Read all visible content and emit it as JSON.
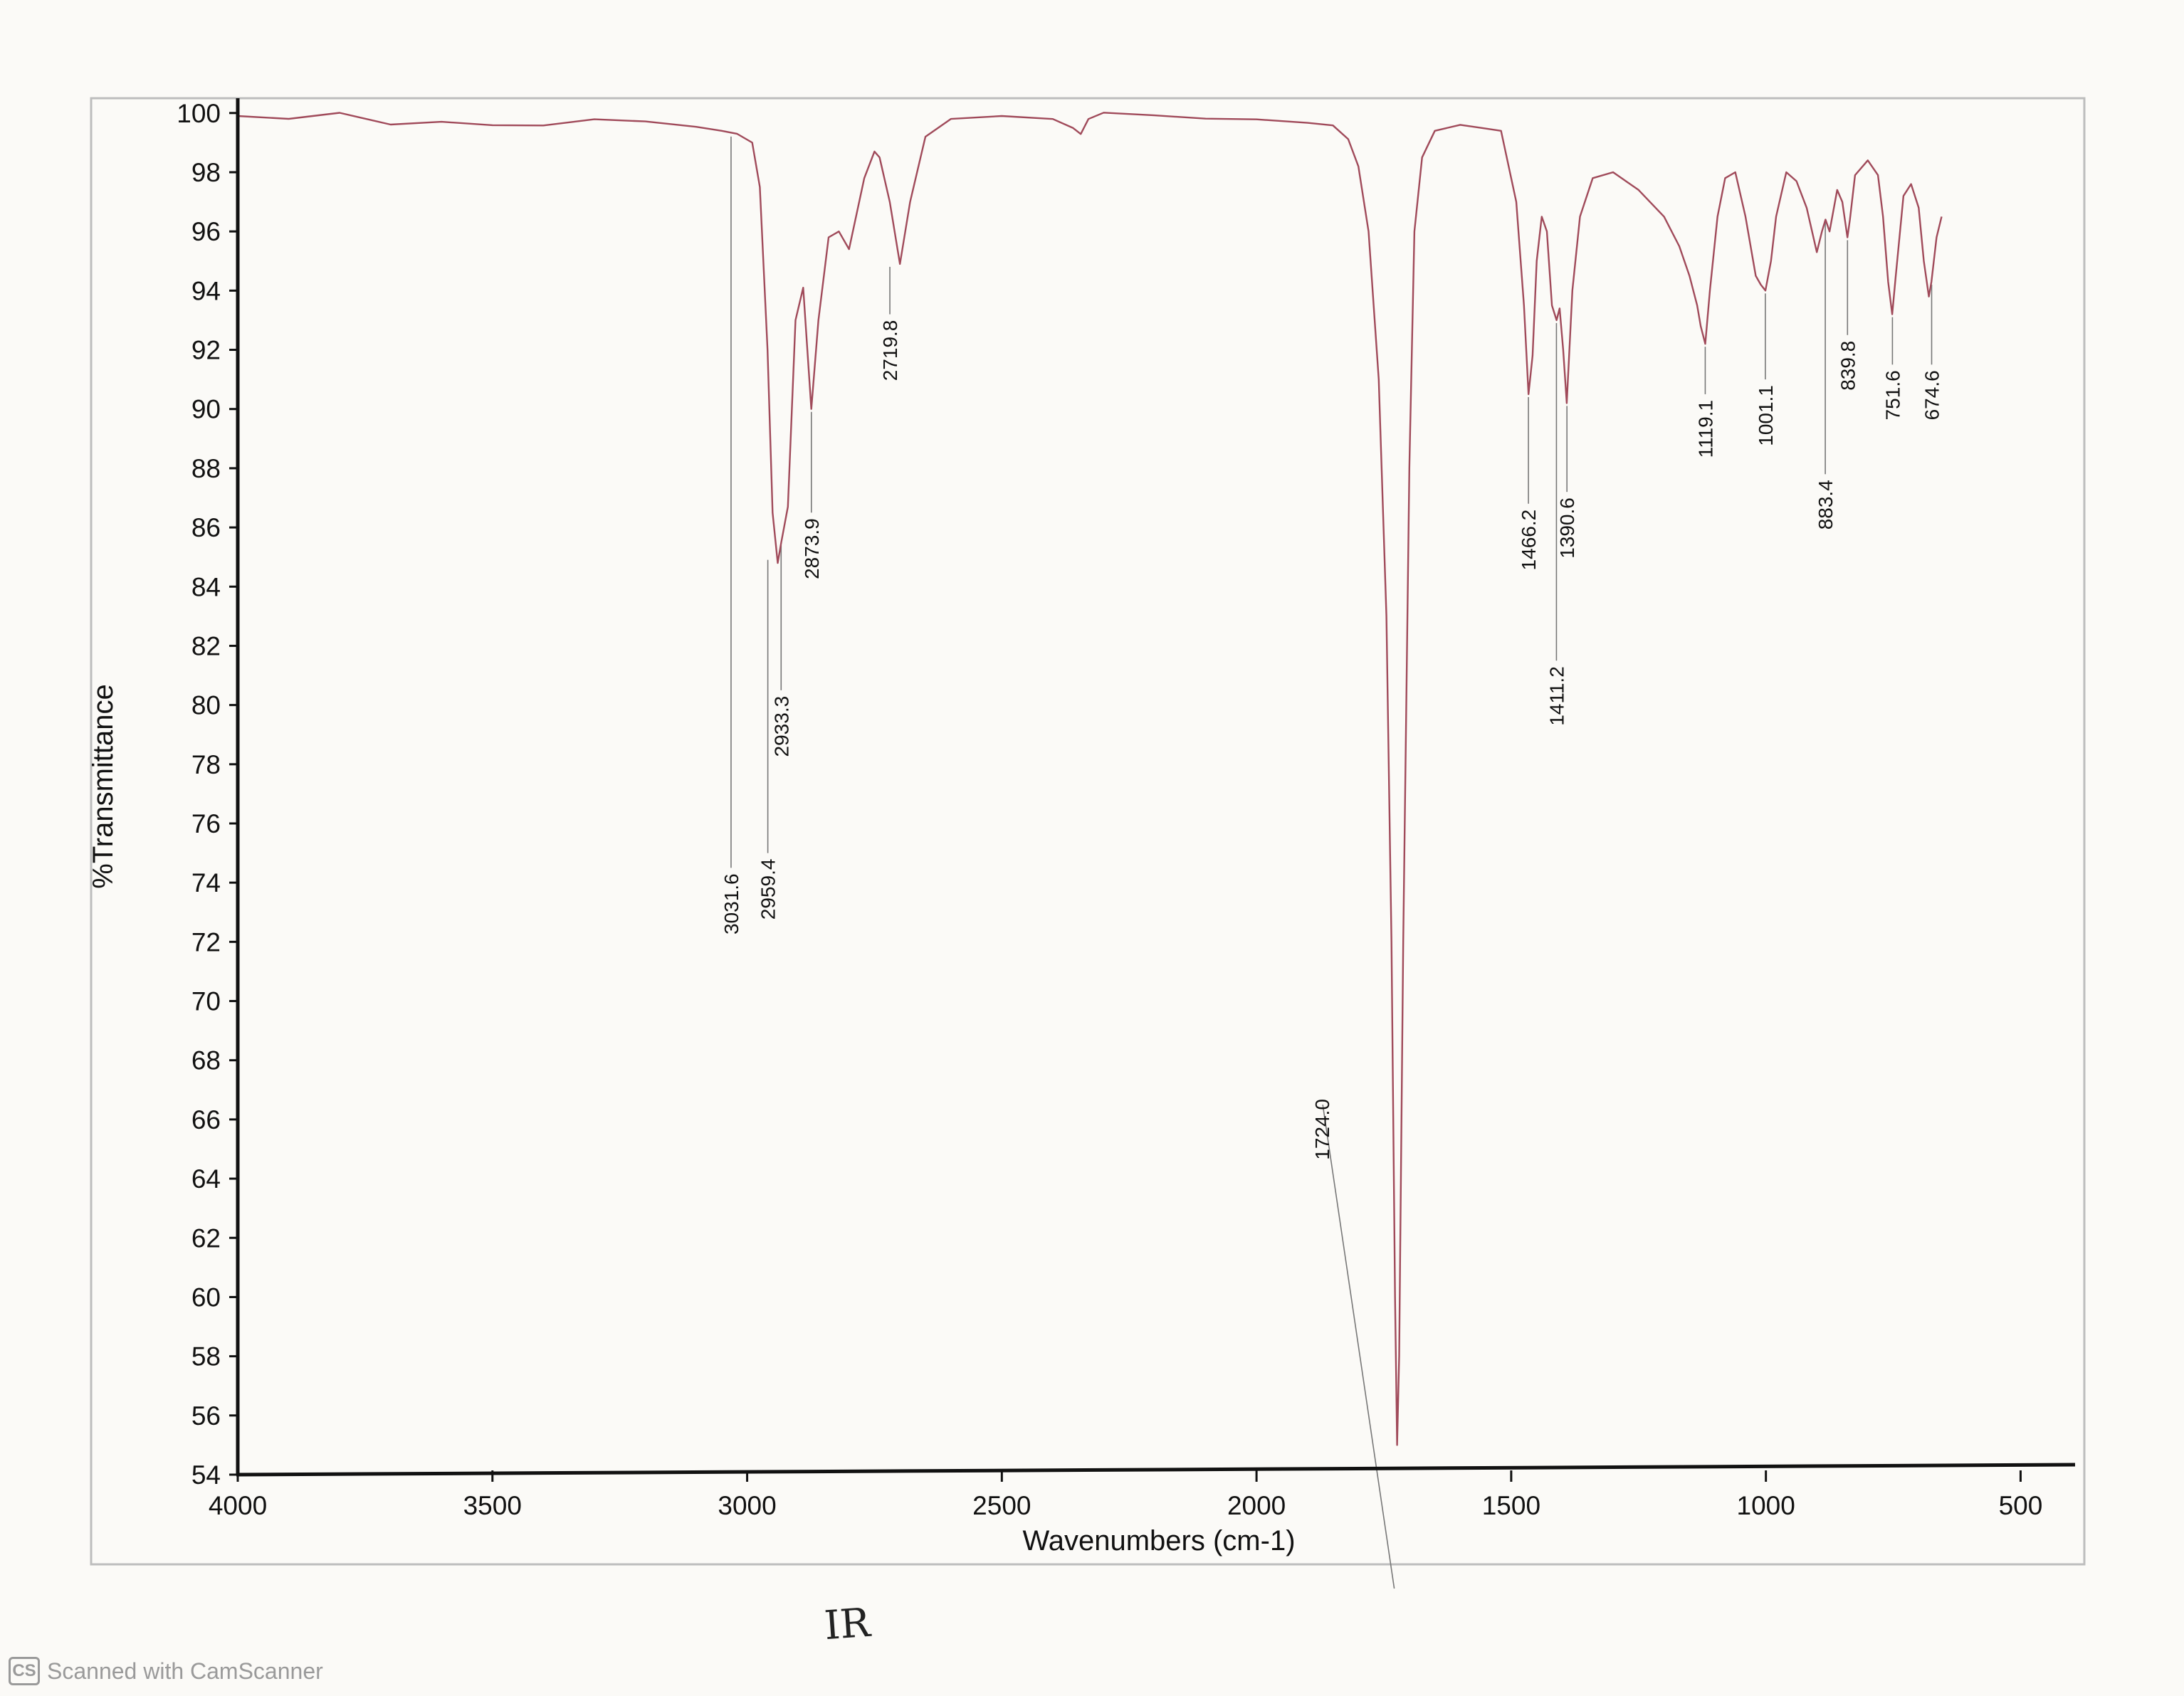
{
  "chart_data": {
    "type": "line",
    "xlabel": "Wavenumbers (cm-1)",
    "ylabel": "%Transmittance",
    "xlim": [
      4000,
      400
    ],
    "ylim": [
      54,
      100.5
    ],
    "x_ticks": [
      4000,
      3500,
      3000,
      2500,
      2000,
      1500,
      1000,
      500
    ],
    "y_ticks": [
      100,
      98,
      96,
      94,
      92,
      90,
      88,
      86,
      84,
      82,
      80,
      78,
      76,
      74,
      72,
      70,
      68,
      66,
      64,
      62,
      60,
      58,
      56,
      54
    ],
    "line_color": "#a04a5a",
    "grid": false,
    "series": [
      {
        "x": [
          4000,
          3900,
          3800,
          3700,
          3600,
          3500,
          3400,
          3300,
          3200,
          3100,
          3050,
          3020,
          2990,
          2975,
          2960,
          2950,
          2940,
          2933,
          2920,
          2905,
          2890,
          2874,
          2860,
          2840,
          2820,
          2800,
          2770,
          2750,
          2740,
          2720,
          2700,
          2680,
          2650,
          2600,
          2500,
          2400,
          2360,
          2345,
          2330,
          2300,
          2200,
          2100,
          2000,
          1900,
          1850,
          1820,
          1800,
          1780,
          1760,
          1745,
          1735,
          1728,
          1724,
          1720,
          1712,
          1700,
          1690,
          1675,
          1650,
          1600,
          1560,
          1520,
          1490,
          1475,
          1466,
          1458,
          1450,
          1440,
          1430,
          1420,
          1411,
          1405,
          1398,
          1391,
          1380,
          1365,
          1340,
          1300,
          1250,
          1200,
          1170,
          1150,
          1135,
          1128,
          1119,
          1110,
          1095,
          1080,
          1060,
          1040,
          1020,
          1010,
          1001,
          990,
          980,
          960,
          940,
          920,
          900,
          890,
          883,
          875,
          860,
          850,
          840,
          835,
          825,
          800,
          780,
          770,
          760,
          752,
          745,
          730,
          715,
          700,
          690,
          680,
          675,
          665,
          655
        ],
        "y": [
          99.9,
          99.7,
          99.9,
          99.6,
          99.8,
          99.7,
          99.6,
          99.7,
          99.6,
          99.5,
          99.4,
          99.3,
          99.0,
          97.5,
          92.0,
          86.5,
          84.8,
          85.5,
          86.7,
          93.0,
          94.1,
          90.0,
          93.0,
          95.8,
          96.0,
          95.4,
          97.8,
          98.7,
          98.5,
          97.0,
          94.9,
          97.0,
          99.2,
          99.7,
          99.9,
          99.9,
          99.6,
          99.3,
          99.7,
          99.9,
          99.9,
          99.9,
          99.9,
          99.7,
          99.5,
          99.0,
          98.2,
          96.0,
          91.0,
          83.0,
          72.0,
          60.0,
          55.0,
          58.0,
          72.0,
          88.0,
          96.0,
          98.5,
          99.4,
          99.6,
          99.5,
          99.4,
          97.0,
          93.5,
          90.5,
          91.8,
          95.0,
          96.5,
          96.0,
          93.5,
          93.0,
          93.4,
          92.0,
          90.2,
          94.0,
          96.5,
          97.8,
          98.0,
          97.4,
          96.5,
          95.5,
          94.5,
          93.5,
          92.8,
          92.2,
          94.0,
          96.5,
          97.8,
          98.0,
          96.5,
          94.5,
          94.2,
          94.0,
          95.0,
          96.5,
          98.0,
          97.7,
          96.8,
          95.3,
          96.0,
          96.4,
          96.0,
          97.4,
          97.0,
          95.8,
          96.4,
          97.9,
          98.4,
          97.9,
          96.5,
          94.3,
          93.2,
          94.5,
          97.2,
          97.6,
          96.8,
          95.0,
          93.8,
          94.3,
          95.8,
          96.5
        ]
      }
    ],
    "peaks": [
      {
        "label": "3031.6",
        "x": 3031.6,
        "y": 99.3
      },
      {
        "label": "2959.4",
        "x": 2959.4,
        "y": 85.0
      },
      {
        "label": "2933.3",
        "x": 2933.3,
        "y": 85.5
      },
      {
        "label": "2873.9",
        "x": 2873.9,
        "y": 90.0
      },
      {
        "label": "2719.8",
        "x": 2719.8,
        "y": 94.9
      },
      {
        "label": "1724.0",
        "x": 1724.0,
        "y": 55.0
      },
      {
        "label": "1466.2",
        "x": 1466.2,
        "y": 90.5
      },
      {
        "label": "1411.2",
        "x": 1411.2,
        "y": 93.0
      },
      {
        "label": "1390.6",
        "x": 1390.6,
        "y": 90.2
      },
      {
        "label": "1119.1",
        "x": 1119.1,
        "y": 92.2
      },
      {
        "label": "1001.1",
        "x": 1001.1,
        "y": 94.0
      },
      {
        "label": "883.4",
        "x": 883.4,
        "y": 96.4
      },
      {
        "label": "839.8",
        "x": 839.8,
        "y": 95.8
      },
      {
        "label": "751.6",
        "x": 751.6,
        "y": 93.2
      },
      {
        "label": "674.6",
        "x": 674.6,
        "y": 94.3
      }
    ]
  },
  "annotation": {
    "handwritten": "IR"
  },
  "watermark": {
    "logo_text": "CS",
    "text": "Scanned with CamScanner"
  }
}
